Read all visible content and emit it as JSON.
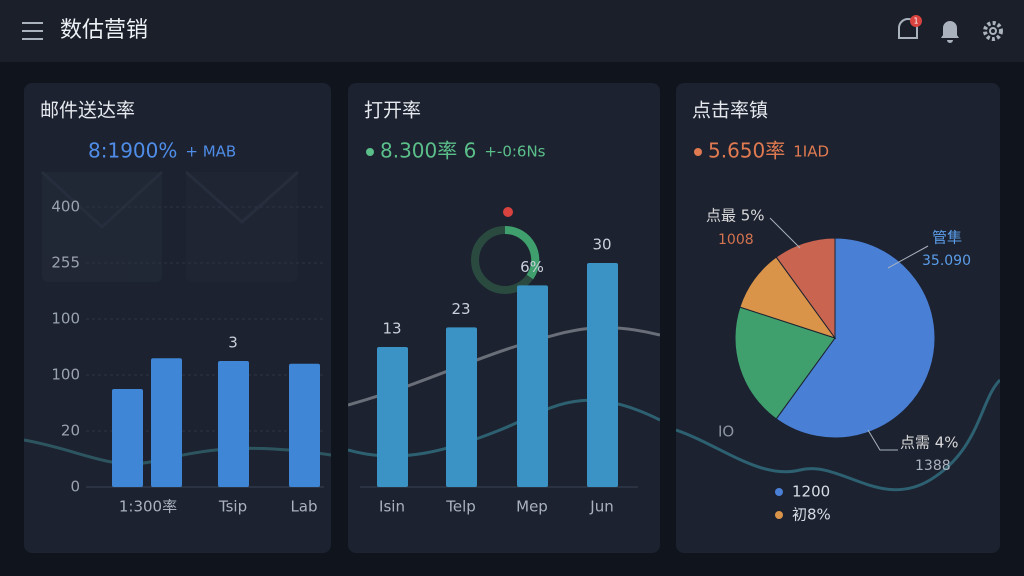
{
  "header": {
    "title": "数估营销",
    "badge": "1"
  },
  "panels": [
    {
      "title": "邮件送达率",
      "kpi": "8:1900%",
      "kpi_delta": "+ MAB",
      "kpi_color": "#4f8de8",
      "chart_data": {
        "type": "bar",
        "categories": [
          null,
          "1:300率",
          "Tsip",
          "Lab"
        ],
        "values": [
          35,
          46,
          45,
          44
        ],
        "value_labels": [
          null,
          null,
          "3",
          null
        ],
        "color": "#3f86d6",
        "ylim": [
          0,
          100
        ],
        "yticks": [
          {
            "value": 0,
            "label": "0"
          },
          20,
          {
            "value": 40,
            "label": "100"
          },
          {
            "value": 60,
            "label": "100"
          },
          {
            "value": 80,
            "label": "255"
          },
          {
            "value": 100,
            "label": "400"
          }
        ]
      }
    },
    {
      "title": "打开率",
      "kpi": "8.300率 6",
      "kpi_delta": "+-0:6Ns",
      "kpi_color": "#5bbf8a",
      "chart_data": {
        "type": "bar",
        "categories": [
          "Isin",
          "Telp",
          "Mep",
          "Jun"
        ],
        "values": [
          50,
          57,
          72,
          80
        ],
        "value_labels": [
          "13",
          "23",
          "6%",
          "30"
        ],
        "color": "#3a93c4",
        "ylim": [
          0,
          100
        ]
      }
    },
    {
      "title": "点击率镇",
      "kpi": "5.650率",
      "kpi_delta": "1IAD",
      "kpi_color": "#e07a50",
      "chart_data": {
        "type": "pie",
        "values": [
          60,
          20,
          10,
          10
        ],
        "colors": [
          "#4a7fd6",
          "#3fa06e",
          "#d9944a",
          "#c8644f"
        ],
        "annotations": [
          {
            "text": "点最 5%",
            "sub": "1008"
          },
          {
            "text": "管隼",
            "sub": "35.090"
          },
          {
            "text": "点需 4%",
            "sub": "1388"
          },
          {
            "text": "IO"
          }
        ],
        "legend": [
          {
            "color": "#4a7fd6",
            "label": "1200"
          },
          {
            "color": "#d9944a",
            "label": "初8%"
          }
        ]
      }
    }
  ]
}
